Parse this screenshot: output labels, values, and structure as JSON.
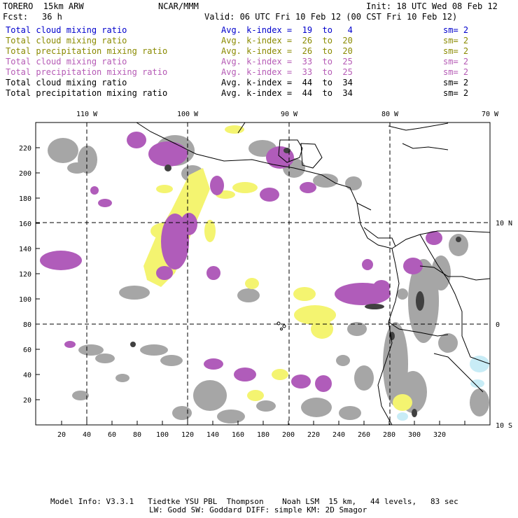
{
  "header": {
    "model": "TORERO  15km ARW",
    "org": "NCAR/MMM",
    "init": "Init: 18 UTC Wed 08 Feb 12",
    "fcst_label": "Fcst:",
    "fcst_value": "36 h",
    "valid": "Valid: 06 UTC Fri 10 Feb 12 (00 CST Fri 10 Feb 12)"
  },
  "legend": [
    {
      "field": "Total cloud mixing ratio",
      "kindex": "Avg. k-index =  19  to   4",
      "sm": "sm= 2",
      "color": "#0000cc"
    },
    {
      "field": "Total cloud mixing ratio",
      "kindex": "Avg. k-index =  26  to  20",
      "sm": "sm= 2",
      "color": "#8a8a00"
    },
    {
      "field": "Total precipitation mixing ratio",
      "kindex": "Avg. k-index =  26  to  20",
      "sm": "sm= 2",
      "color": "#8a8a00"
    },
    {
      "field": "Total cloud mixing ratio",
      "kindex": "Avg. k-index =  33  to  25",
      "sm": "sm= 2",
      "color": "#b55ab5"
    },
    {
      "field": "Total precipitation mixing ratio",
      "kindex": "Avg. k-index =  33  to  25",
      "sm": "sm= 2",
      "color": "#b55ab5"
    },
    {
      "field": "Total cloud mixing ratio",
      "kindex": "Avg. k-index =  44  to  34",
      "sm": "sm= 2",
      "color": "#000000"
    },
    {
      "field": "Total precipitation mixing ratio",
      "kindex": "Avg. k-index =  44  to  34",
      "sm": "sm= 2",
      "color": "#000000"
    }
  ],
  "map": {
    "lon_labels": [
      "110 W",
      "100 W",
      "90 W",
      "80 W",
      "70 W"
    ],
    "lat_labels": [
      "10 N",
      "0",
      "10 S"
    ],
    "x_ticks": [
      "20",
      "40",
      "60",
      "80",
      "100",
      "120",
      "140",
      "160",
      "180",
      "200",
      "220",
      "240",
      "260",
      "280",
      "300",
      "320"
    ],
    "y_ticks": [
      "20",
      "40",
      "60",
      "80",
      "100",
      "120",
      "140",
      "160",
      "180",
      "200",
      "220"
    ],
    "colors": {
      "gray": "#a6a6a6",
      "purple": "#b05cba",
      "yellow": "#f4f470",
      "dark": "#404040",
      "cyan": "#c8ecf6"
    }
  },
  "footer": {
    "line1": "Model Info: V3.3.1   Tiedtke YSU PBL  Thompson    Noah LSM  15 km,   44 levels,   83 sec",
    "line2": "LW: Godd SW: Goddard DIFF: simple KM: 2D Smagor"
  }
}
